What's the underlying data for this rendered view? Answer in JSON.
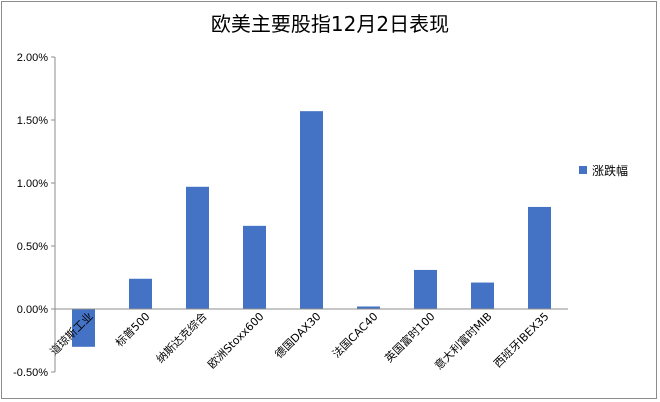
{
  "chart_data": {
    "type": "bar",
    "title": "欧美主要股指12月2日表现",
    "categories": [
      "道琼斯工业",
      "标普500",
      "纳斯达克综合",
      "欧洲Stoxx600",
      "德国DAX30",
      "法国CAC40",
      "英国富时100",
      "意大利富时MIB",
      "西班牙IBEX35"
    ],
    "series": [
      {
        "name": "涨跌幅",
        "values": [
          -0.3,
          0.24,
          0.97,
          0.66,
          1.57,
          0.02,
          0.31,
          0.21,
          0.81
        ],
        "color": "#4472C4"
      }
    ],
    "yticks": [
      "-0.50%",
      "0.00%",
      "0.50%",
      "1.00%",
      "1.50%",
      "2.00%"
    ],
    "ylim": [
      -0.5,
      2.0
    ],
    "grid": false,
    "legend": "right"
  }
}
